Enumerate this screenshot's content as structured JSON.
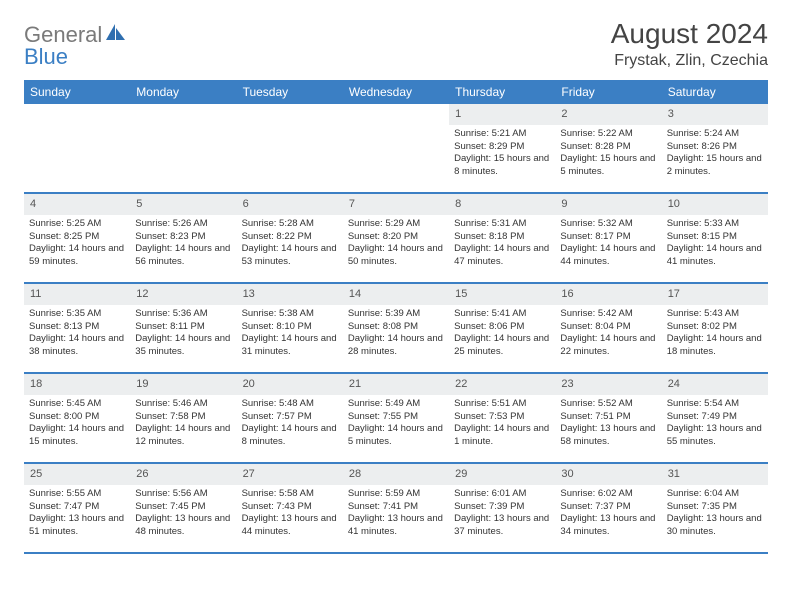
{
  "brand": {
    "text1": "General",
    "text2": "Blue"
  },
  "title": "August 2024",
  "location": "Frystak, Zlin, Czechia",
  "colors": {
    "header_bg": "#3b7fc4",
    "day_num_bg": "#eceeef",
    "text": "#333333",
    "brand_gray": "#7a7a7a",
    "brand_blue": "#3b7fc4"
  },
  "day_labels": [
    "Sunday",
    "Monday",
    "Tuesday",
    "Wednesday",
    "Thursday",
    "Friday",
    "Saturday"
  ],
  "weeks": [
    [
      {
        "n": "",
        "sunrise": "",
        "sunset": "",
        "daylight": ""
      },
      {
        "n": "",
        "sunrise": "",
        "sunset": "",
        "daylight": ""
      },
      {
        "n": "",
        "sunrise": "",
        "sunset": "",
        "daylight": ""
      },
      {
        "n": "",
        "sunrise": "",
        "sunset": "",
        "daylight": ""
      },
      {
        "n": "1",
        "sunrise": "Sunrise: 5:21 AM",
        "sunset": "Sunset: 8:29 PM",
        "daylight": "Daylight: 15 hours and 8 minutes."
      },
      {
        "n": "2",
        "sunrise": "Sunrise: 5:22 AM",
        "sunset": "Sunset: 8:28 PM",
        "daylight": "Daylight: 15 hours and 5 minutes."
      },
      {
        "n": "3",
        "sunrise": "Sunrise: 5:24 AM",
        "sunset": "Sunset: 8:26 PM",
        "daylight": "Daylight: 15 hours and 2 minutes."
      }
    ],
    [
      {
        "n": "4",
        "sunrise": "Sunrise: 5:25 AM",
        "sunset": "Sunset: 8:25 PM",
        "daylight": "Daylight: 14 hours and 59 minutes."
      },
      {
        "n": "5",
        "sunrise": "Sunrise: 5:26 AM",
        "sunset": "Sunset: 8:23 PM",
        "daylight": "Daylight: 14 hours and 56 minutes."
      },
      {
        "n": "6",
        "sunrise": "Sunrise: 5:28 AM",
        "sunset": "Sunset: 8:22 PM",
        "daylight": "Daylight: 14 hours and 53 minutes."
      },
      {
        "n": "7",
        "sunrise": "Sunrise: 5:29 AM",
        "sunset": "Sunset: 8:20 PM",
        "daylight": "Daylight: 14 hours and 50 minutes."
      },
      {
        "n": "8",
        "sunrise": "Sunrise: 5:31 AM",
        "sunset": "Sunset: 8:18 PM",
        "daylight": "Daylight: 14 hours and 47 minutes."
      },
      {
        "n": "9",
        "sunrise": "Sunrise: 5:32 AM",
        "sunset": "Sunset: 8:17 PM",
        "daylight": "Daylight: 14 hours and 44 minutes."
      },
      {
        "n": "10",
        "sunrise": "Sunrise: 5:33 AM",
        "sunset": "Sunset: 8:15 PM",
        "daylight": "Daylight: 14 hours and 41 minutes."
      }
    ],
    [
      {
        "n": "11",
        "sunrise": "Sunrise: 5:35 AM",
        "sunset": "Sunset: 8:13 PM",
        "daylight": "Daylight: 14 hours and 38 minutes."
      },
      {
        "n": "12",
        "sunrise": "Sunrise: 5:36 AM",
        "sunset": "Sunset: 8:11 PM",
        "daylight": "Daylight: 14 hours and 35 minutes."
      },
      {
        "n": "13",
        "sunrise": "Sunrise: 5:38 AM",
        "sunset": "Sunset: 8:10 PM",
        "daylight": "Daylight: 14 hours and 31 minutes."
      },
      {
        "n": "14",
        "sunrise": "Sunrise: 5:39 AM",
        "sunset": "Sunset: 8:08 PM",
        "daylight": "Daylight: 14 hours and 28 minutes."
      },
      {
        "n": "15",
        "sunrise": "Sunrise: 5:41 AM",
        "sunset": "Sunset: 8:06 PM",
        "daylight": "Daylight: 14 hours and 25 minutes."
      },
      {
        "n": "16",
        "sunrise": "Sunrise: 5:42 AM",
        "sunset": "Sunset: 8:04 PM",
        "daylight": "Daylight: 14 hours and 22 minutes."
      },
      {
        "n": "17",
        "sunrise": "Sunrise: 5:43 AM",
        "sunset": "Sunset: 8:02 PM",
        "daylight": "Daylight: 14 hours and 18 minutes."
      }
    ],
    [
      {
        "n": "18",
        "sunrise": "Sunrise: 5:45 AM",
        "sunset": "Sunset: 8:00 PM",
        "daylight": "Daylight: 14 hours and 15 minutes."
      },
      {
        "n": "19",
        "sunrise": "Sunrise: 5:46 AM",
        "sunset": "Sunset: 7:58 PM",
        "daylight": "Daylight: 14 hours and 12 minutes."
      },
      {
        "n": "20",
        "sunrise": "Sunrise: 5:48 AM",
        "sunset": "Sunset: 7:57 PM",
        "daylight": "Daylight: 14 hours and 8 minutes."
      },
      {
        "n": "21",
        "sunrise": "Sunrise: 5:49 AM",
        "sunset": "Sunset: 7:55 PM",
        "daylight": "Daylight: 14 hours and 5 minutes."
      },
      {
        "n": "22",
        "sunrise": "Sunrise: 5:51 AM",
        "sunset": "Sunset: 7:53 PM",
        "daylight": "Daylight: 14 hours and 1 minute."
      },
      {
        "n": "23",
        "sunrise": "Sunrise: 5:52 AM",
        "sunset": "Sunset: 7:51 PM",
        "daylight": "Daylight: 13 hours and 58 minutes."
      },
      {
        "n": "24",
        "sunrise": "Sunrise: 5:54 AM",
        "sunset": "Sunset: 7:49 PM",
        "daylight": "Daylight: 13 hours and 55 minutes."
      }
    ],
    [
      {
        "n": "25",
        "sunrise": "Sunrise: 5:55 AM",
        "sunset": "Sunset: 7:47 PM",
        "daylight": "Daylight: 13 hours and 51 minutes."
      },
      {
        "n": "26",
        "sunrise": "Sunrise: 5:56 AM",
        "sunset": "Sunset: 7:45 PM",
        "daylight": "Daylight: 13 hours and 48 minutes."
      },
      {
        "n": "27",
        "sunrise": "Sunrise: 5:58 AM",
        "sunset": "Sunset: 7:43 PM",
        "daylight": "Daylight: 13 hours and 44 minutes."
      },
      {
        "n": "28",
        "sunrise": "Sunrise: 5:59 AM",
        "sunset": "Sunset: 7:41 PM",
        "daylight": "Daylight: 13 hours and 41 minutes."
      },
      {
        "n": "29",
        "sunrise": "Sunrise: 6:01 AM",
        "sunset": "Sunset: 7:39 PM",
        "daylight": "Daylight: 13 hours and 37 minutes."
      },
      {
        "n": "30",
        "sunrise": "Sunrise: 6:02 AM",
        "sunset": "Sunset: 7:37 PM",
        "daylight": "Daylight: 13 hours and 34 minutes."
      },
      {
        "n": "31",
        "sunrise": "Sunrise: 6:04 AM",
        "sunset": "Sunset: 7:35 PM",
        "daylight": "Daylight: 13 hours and 30 minutes."
      }
    ]
  ]
}
